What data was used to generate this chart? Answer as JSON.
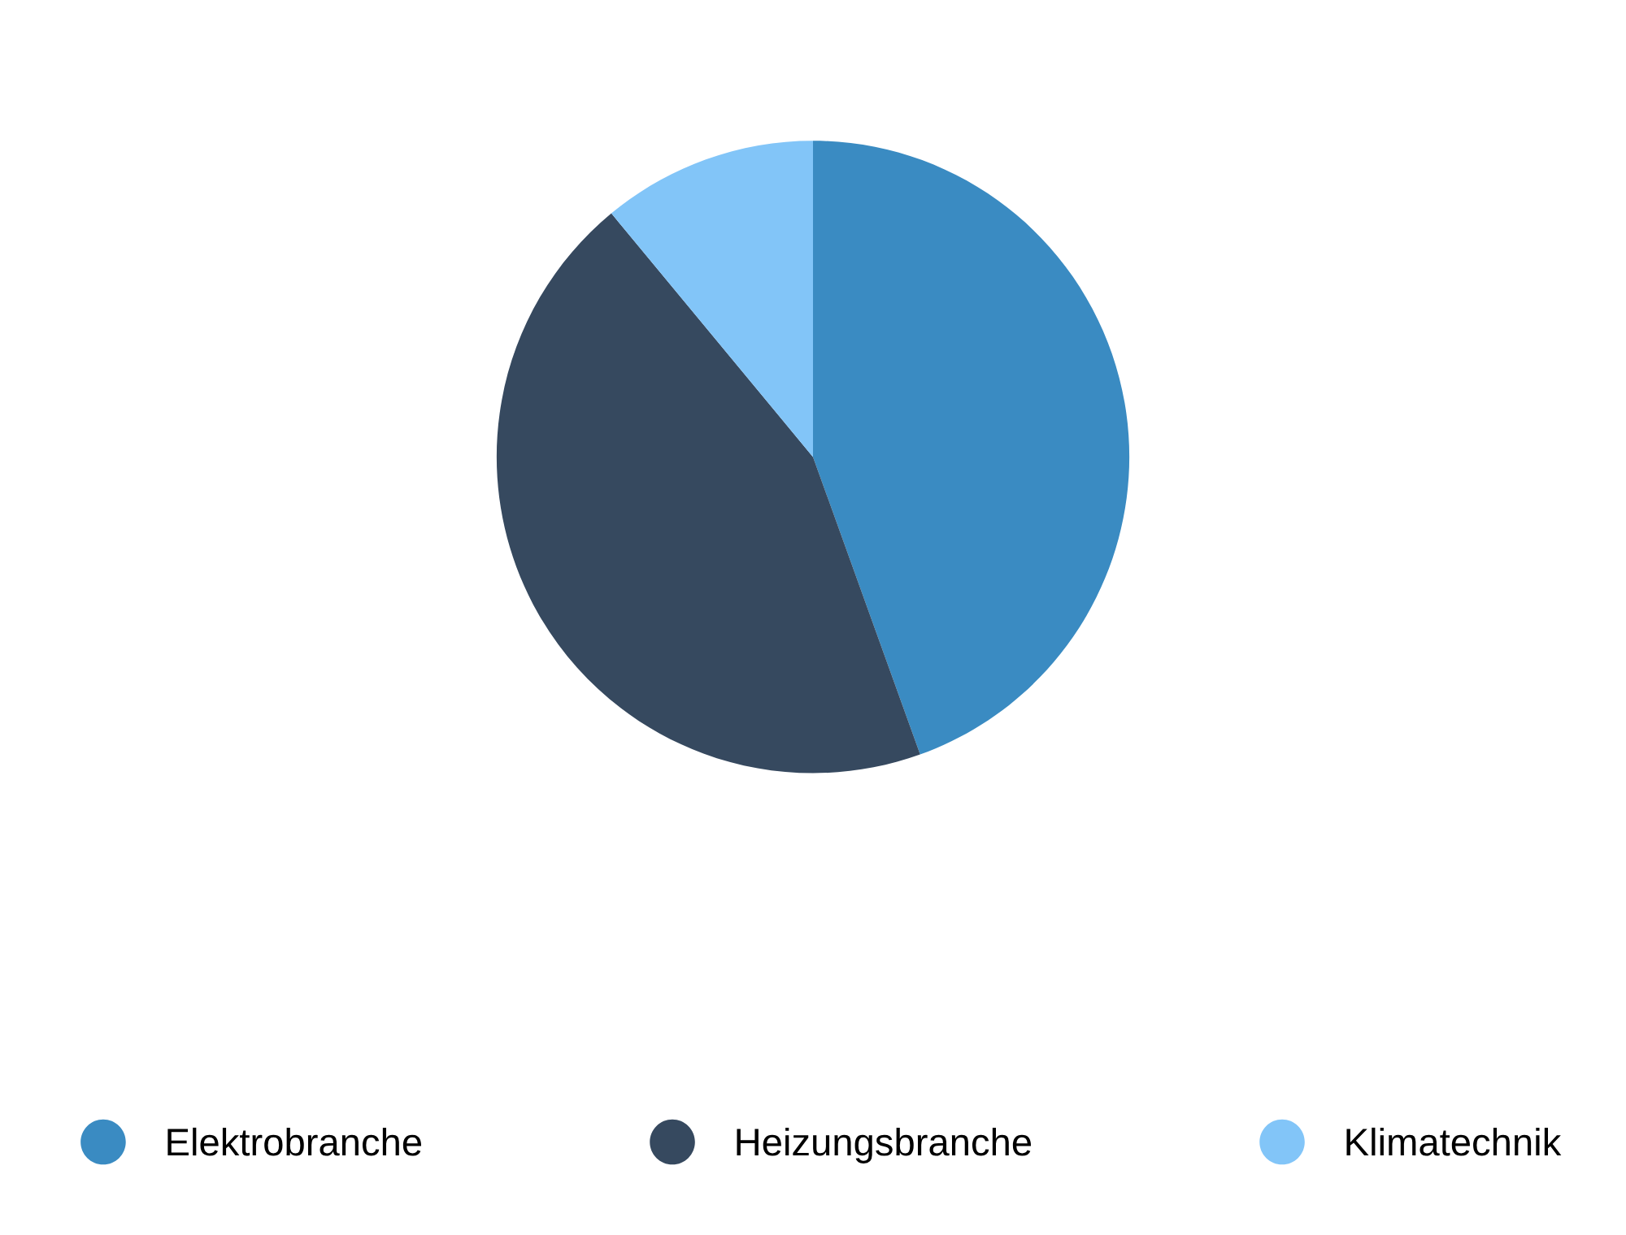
{
  "chart_data": {
    "type": "pie",
    "categories": [
      "Elektrobranche",
      "Heizungsbranche",
      "Klimatechnik"
    ],
    "values": [
      44.5,
      44.5,
      11
    ],
    "colors": [
      "#3a8bc2",
      "#36495f",
      "#82c5f8"
    ],
    "legend": "bottom"
  }
}
